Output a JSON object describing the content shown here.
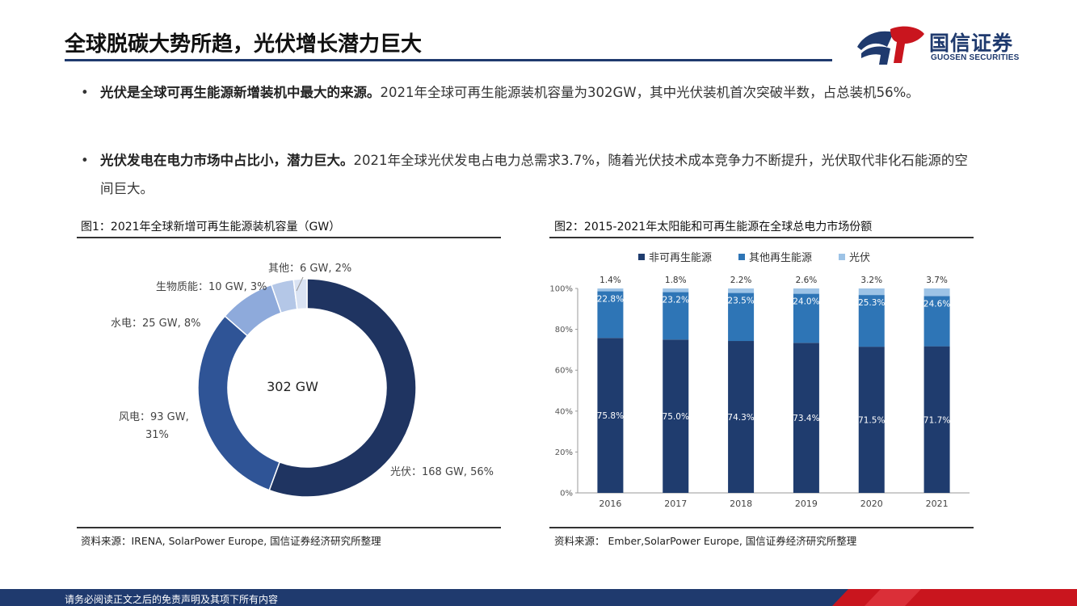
{
  "header": {
    "title": "全球脱碳大势所趋，光伏增长潜力巨大",
    "logo_cn": "国信证券",
    "logo_en": "GUOSEN SECURITIES"
  },
  "bullets": [
    {
      "marker": "•",
      "bold": "光伏是全球可再生能源新增装机中最大的来源。",
      "text": "2021年全球可再生能源装机容量为302GW，其中光伏装机首次突破半数，占总装机56%。"
    },
    {
      "marker": "•",
      "bold": "光伏发电在电力市场中占比小，潜力巨大。",
      "text": "2021年全球光伏发电占电力总需求3.7%，随着光伏技术成本竞争力不断提升，光伏取代非化石能源的空间巨大。"
    }
  ],
  "figure1": {
    "title": "图1：2021年全球新增可再生能源装机容量（GW）",
    "source": "资料来源：IRENA, SolarPower Europe, 国信证券经济研究所整理"
  },
  "figure2": {
    "title": "图2：2015-2021年太阳能和可再生能源在全球总电力市场份额",
    "source": "资料来源： Ember,SolarPower Europe, 国信证券经济研究所整理"
  },
  "chart_data": [
    {
      "type": "pie",
      "title": "图1：2021年全球新增可再生能源装机容量（GW）",
      "center_label": "302 GW",
      "slices": [
        {
          "name": "光伏",
          "value": 168,
          "label_a": "光伏：168 GW, 56%",
          "label_b": "",
          "color": "#1f3461"
        },
        {
          "name": "风电",
          "value": 93,
          "label_a": "风电：93 GW,",
          "label_b": "31%",
          "color": "#2f5496"
        },
        {
          "name": "水电",
          "value": 25,
          "label_a": "水电：25 GW, 8%",
          "label_b": "",
          "color": "#8eaadb"
        },
        {
          "name": "生物质能",
          "value": 10,
          "label_a": "生物质能：10 GW, 3%",
          "label_b": "",
          "color": "#b4c7e7"
        },
        {
          "name": "其他",
          "value": 6,
          "label_a": "其他：6 GW, 2%",
          "label_b": "",
          "color": "#dae3f3"
        }
      ]
    },
    {
      "type": "bar",
      "stacked": true,
      "title": "图2：2015-2021年太阳能和可再生能源在全球总电力市场份额",
      "categories": [
        "2016",
        "2017",
        "2018",
        "2019",
        "2020",
        "2021"
      ],
      "series": [
        {
          "name": "非可再生能源",
          "values": [
            75.8,
            75.0,
            74.3,
            73.4,
            71.5,
            71.7
          ],
          "labels": [
            "75.8%",
            "75.0%",
            "74.3%",
            "73.4%",
            "71.5%",
            "71.7%"
          ],
          "color": "#1f3c6e"
        },
        {
          "name": "其他再生能源",
          "values": [
            22.8,
            23.2,
            23.5,
            24.0,
            25.3,
            24.6
          ],
          "labels": [
            "22.8%",
            "23.2%",
            "23.5%",
            "24.0%",
            "25.3%",
            "24.6%"
          ],
          "color": "#2e75b6"
        },
        {
          "name": "光伏",
          "values": [
            1.4,
            1.8,
            2.2,
            2.6,
            3.2,
            3.7
          ],
          "labels": [
            "1.4%",
            "1.8%",
            "2.2%",
            "2.6%",
            "3.2%",
            "3.7%"
          ],
          "color": "#9dc3e6"
        }
      ],
      "yticks": [
        "0%",
        "20%",
        "40%",
        "60%",
        "80%",
        "100%"
      ],
      "ylim": [
        0,
        100
      ],
      "legend": "top"
    }
  ],
  "footer": {
    "disclaimer": "请务必阅读正文之后的免责声明及其项下所有内容"
  }
}
